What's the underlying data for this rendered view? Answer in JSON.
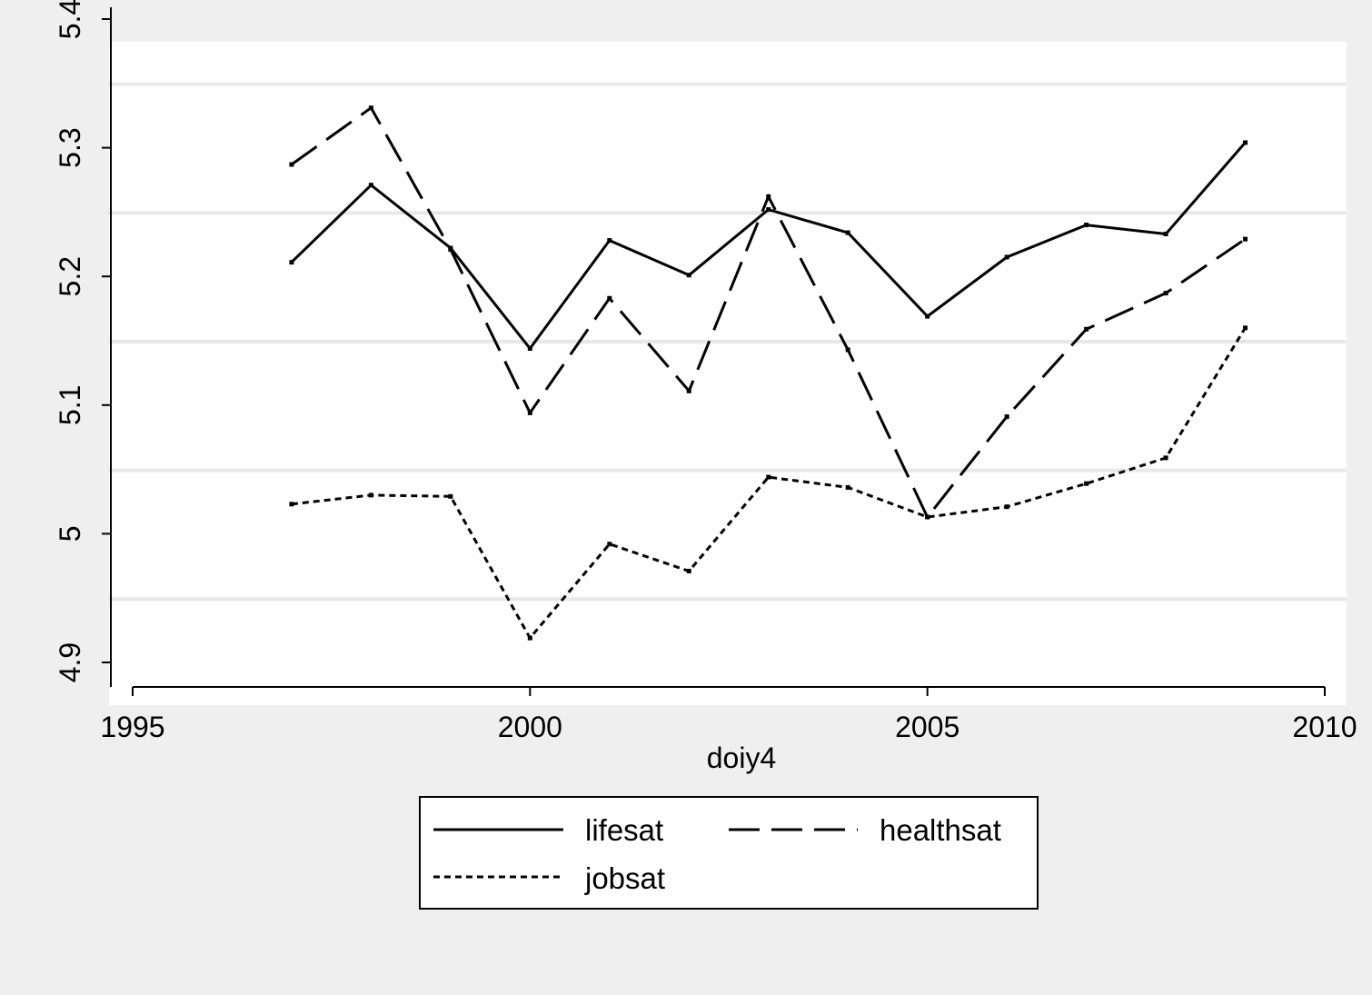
{
  "colors": {
    "page_background": "#efefef",
    "plot_background": "#ffffff",
    "gridline": "#e8e8e8",
    "axis": "#000000",
    "series": "#000000"
  },
  "chart_data": {
    "type": "line",
    "title": "",
    "xlabel": "doiy4",
    "ylabel": "",
    "xlim": [
      1995,
      2010
    ],
    "ylim": [
      4.9,
      5.4
    ],
    "x_ticks": [
      1995,
      2000,
      2005,
      2010
    ],
    "x_tick_labels": [
      "1995",
      "2000",
      "2005",
      "2010"
    ],
    "y_ticks": [
      4.9,
      5.0,
      5.1,
      5.2,
      5.3,
      5.4
    ],
    "y_tick_labels": [
      "4.9",
      "5",
      "5.1",
      "5.2",
      "5.3",
      "5.4"
    ],
    "grid": true,
    "legend_position": "bottom",
    "x": [
      1997,
      1998,
      1999,
      2000,
      2001,
      2002,
      2003,
      2004,
      2005,
      2006,
      2007,
      2008,
      2009
    ],
    "series": [
      {
        "name": "lifesat",
        "line_style": "solid",
        "values": [
          5.211,
          5.271,
          5.222,
          5.144,
          5.228,
          5.201,
          5.252,
          5.234,
          5.169,
          5.215,
          5.24,
          5.233,
          5.304
        ]
      },
      {
        "name": "healthsat",
        "line_style": "longdash",
        "values": [
          5.287,
          5.331,
          5.221,
          5.094,
          5.183,
          5.111,
          5.262,
          5.143,
          5.013,
          5.091,
          5.159,
          5.187,
          5.229
        ]
      },
      {
        "name": "jobsat",
        "line_style": "shortdash",
        "values": [
          5.023,
          5.03,
          5.029,
          4.919,
          4.992,
          4.971,
          5.044,
          5.036,
          5.013,
          5.021,
          5.039,
          5.059,
          5.16
        ]
      }
    ]
  }
}
